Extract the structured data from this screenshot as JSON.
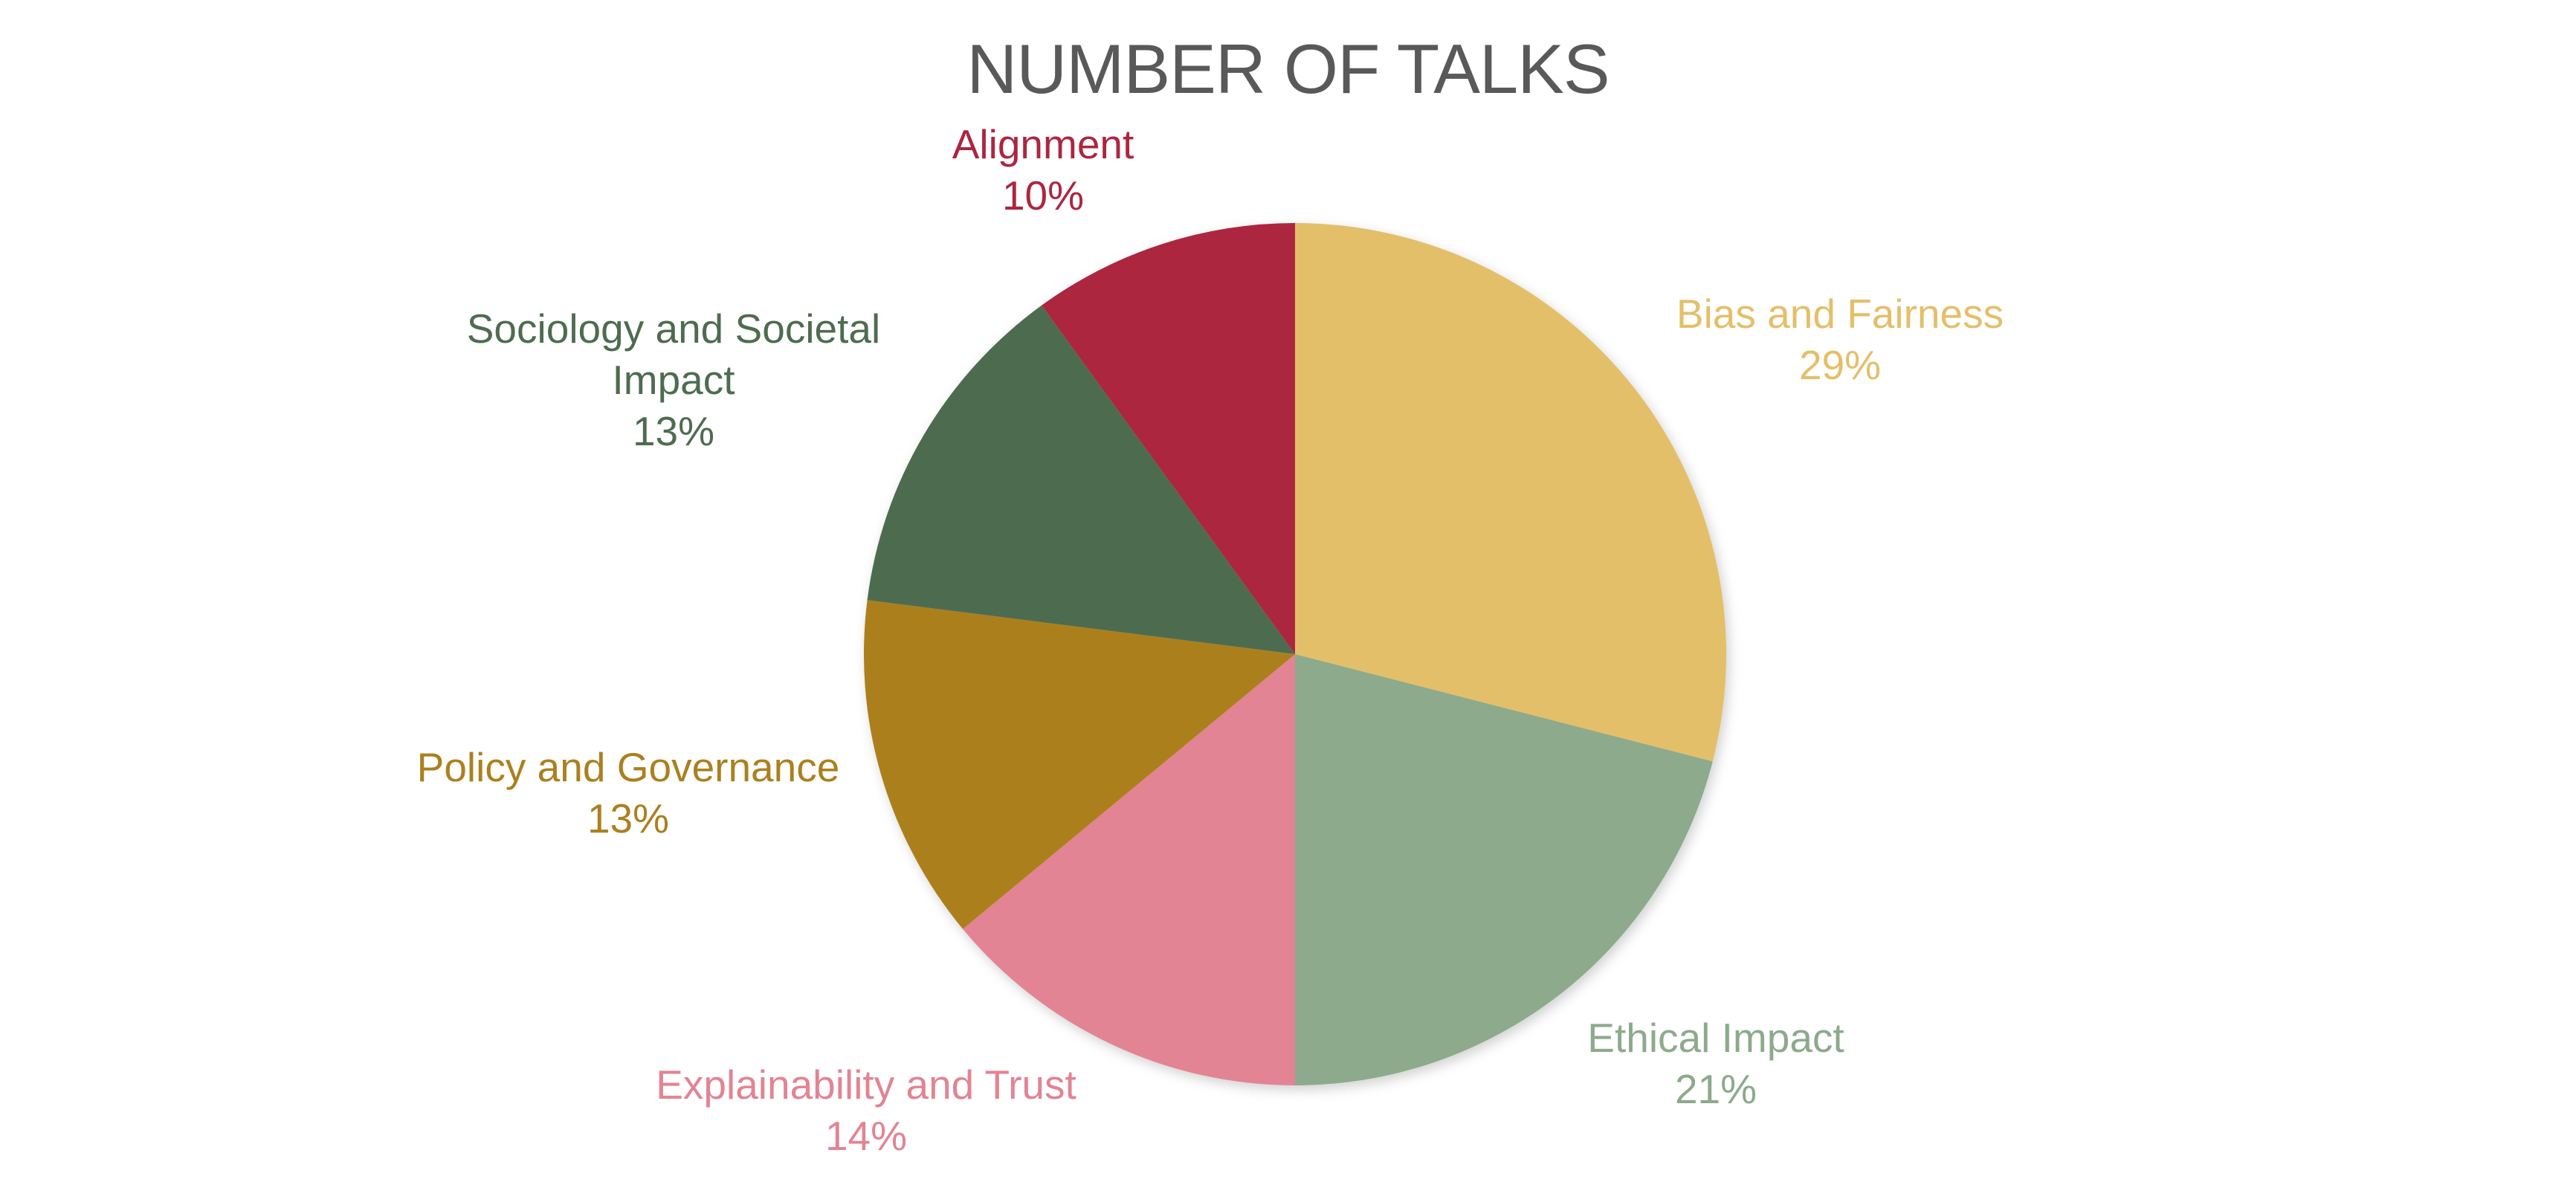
{
  "chart_data": {
    "type": "pie",
    "title": "NUMBER OF TALKS",
    "start_angle_deg": 0,
    "direction": "clockwise",
    "slices": [
      {
        "name": "Bias and Fairness",
        "value": 29,
        "label_pct": "29%",
        "color": "#E4BF6A"
      },
      {
        "name": "Ethical Impact",
        "value": 21,
        "label_pct": "21%",
        "color": "#8DAA8C"
      },
      {
        "name": "Explainability and Trust",
        "value": 14,
        "label_pct": "14%",
        "color": "#E28493"
      },
      {
        "name": "Policy and Governance",
        "value": 13,
        "label_pct": "13%",
        "color": "#AB801F"
      },
      {
        "name": "Sociology and Societal Impact",
        "value": 13,
        "label_pct": "13%",
        "color": "#4E6C50"
      },
      {
        "name": "Alignment",
        "value": 10,
        "label_pct": "10%",
        "color": "#AC2640"
      }
    ]
  }
}
